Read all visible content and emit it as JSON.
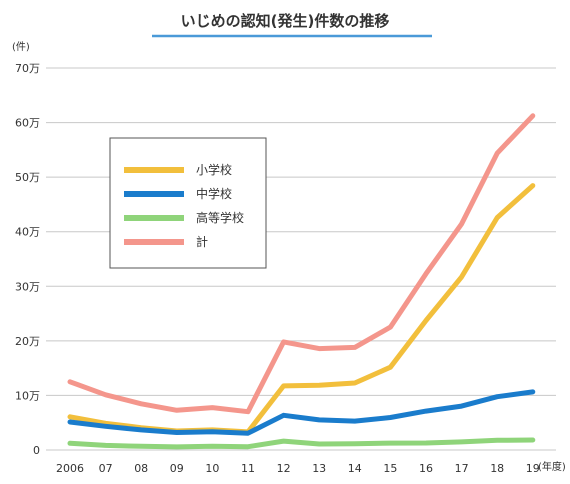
{
  "chart_data": {
    "type": "line",
    "title": "いじめの認知(発生)件数の推移",
    "y_unit_label": "(件)",
    "x_unit_label": "(年度)",
    "x_tick_labels": [
      "2006",
      "07",
      "08",
      "09",
      "10",
      "11",
      "12",
      "13",
      "14",
      "15",
      "16",
      "17",
      "18",
      "19"
    ],
    "y_tick_labels": [
      "0",
      "10万",
      "20万",
      "30万",
      "40万",
      "50万",
      "60万",
      "70万"
    ],
    "ylim": [
      0,
      700000
    ],
    "grid": true,
    "legend_position": "upper-left",
    "series": [
      {
        "name": "小学校",
        "color": "#f2bf3c",
        "values": [
          60897,
          48896,
          40807,
          34766,
          36909,
          33124,
          117384,
          118748,
          122734,
          151692,
          237256,
          317121,
          425844,
          484545
        ]
      },
      {
        "name": "中学校",
        "color": "#1a7ccc",
        "values": [
          51310,
          43505,
          36795,
          32111,
          33323,
          30749,
          63634,
          55248,
          52971,
          59502,
          71309,
          80424,
          97704,
          106524
        ]
      },
      {
        "name": "高等学校",
        "color": "#8fd47a",
        "values": [
          12307,
          8355,
          6737,
          5642,
          7018,
          6020,
          16274,
          11039,
          11404,
          12664,
          12874,
          14789,
          17709,
          18352
        ]
      },
      {
        "name": "計",
        "color": "#f4968c",
        "values": [
          124898,
          101097,
          84648,
          72778,
          77630,
          70231,
          198109,
          185803,
          188072,
          225132,
          323143,
          414378,
          543933,
          612496
        ]
      }
    ]
  }
}
